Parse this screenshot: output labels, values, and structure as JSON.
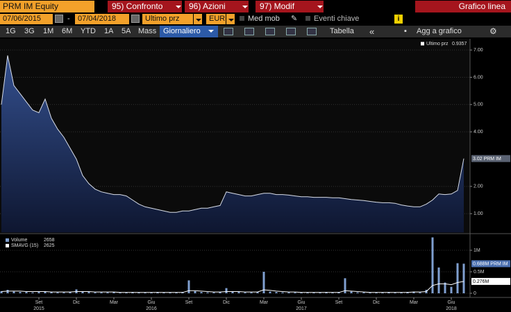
{
  "toolbar": {
    "security": "PRM IM Equity",
    "menus": [
      "95) Confronto",
      "96) Azioni",
      "97) Modif"
    ],
    "chart_type": "Grafico linea",
    "start_date": "07/06/2015",
    "end_date": "07/04/2018",
    "field": "Ultimo prz",
    "currency": "EUR",
    "options": [
      "Med mob",
      "Eventi chiave"
    ],
    "info": "i",
    "ranges": [
      "1G",
      "3G",
      "1M",
      "6M",
      "YTD",
      "1A",
      "5A",
      "Mass"
    ],
    "frequency": "Giornaliero",
    "table": "Tabella",
    "collapse": "«",
    "add": "Agg a grafico"
  },
  "chart_data": [
    {
      "type": "line",
      "grid": true,
      "legend": "upper right",
      "ylim": [
        0.31,
        7.41
      ],
      "yticks": [
        {
          "value": 1,
          "label": "1.00"
        },
        {
          "value": 2,
          "label": "2.00"
        },
        {
          "value": 4,
          "label": "4.00"
        },
        {
          "value": 5,
          "label": "5.00"
        },
        {
          "value": 6,
          "label": "6.00"
        },
        {
          "value": 7,
          "label": "7.00"
        }
      ],
      "series": [
        {
          "name": "Ultimo prz",
          "legend_value": 0.9357,
          "color": "#d8dde8",
          "fill": true,
          "label_fill": "#5a6272",
          "label_text": "#ffffff",
          "values": [
            5.0,
            6.8,
            5.7,
            5.4,
            5.1,
            4.8,
            4.7,
            5.2,
            4.5,
            4.1,
            3.8,
            3.4,
            3.0,
            2.4,
            2.1,
            1.9,
            1.8,
            1.75,
            1.7,
            1.7,
            1.65,
            1.5,
            1.35,
            1.25,
            1.2,
            1.15,
            1.1,
            1.05,
            1.05,
            1.1,
            1.1,
            1.15,
            1.2,
            1.2,
            1.25,
            1.3,
            1.8,
            1.75,
            1.7,
            1.65,
            1.65,
            1.7,
            1.75,
            1.75,
            1.7,
            1.7,
            1.68,
            1.65,
            1.62,
            1.62,
            1.6,
            1.6,
            1.6,
            1.58,
            1.58,
            1.55,
            1.52,
            1.5,
            1.48,
            1.45,
            1.42,
            1.4,
            1.4,
            1.38,
            1.32,
            1.28,
            1.25,
            1.25,
            1.35,
            1.5,
            1.72,
            1.7,
            1.72,
            1.85,
            3.02
          ],
          "value_labels": [
            null,
            null,
            null,
            null,
            null,
            null,
            null,
            null,
            null,
            null,
            null,
            null,
            null,
            null,
            null,
            null,
            null,
            null,
            null,
            null,
            null,
            null,
            null,
            null,
            null,
            null,
            null,
            null,
            null,
            null,
            null,
            null,
            null,
            null,
            null,
            null,
            null,
            null,
            null,
            null,
            null,
            null,
            null,
            null,
            null,
            null,
            null,
            null,
            null,
            null,
            null,
            null,
            null,
            null,
            null,
            null,
            null,
            null,
            null,
            null,
            null,
            null,
            null,
            null,
            null,
            null,
            null,
            null,
            null,
            null,
            null,
            null,
            null,
            null,
            "3.02 PRM IM"
          ]
        }
      ]
    },
    {
      "type": "bar",
      "grid": true,
      "legend": "upper left",
      "ylim": [
        0,
        1.35
      ],
      "yticks": [
        0,
        {
          "value": 0.5,
          "label": "0.5M"
        },
        {
          "value": 1,
          "label": "1M"
        }
      ],
      "categories": [
        null,
        null,
        null,
        null,
        null,
        null,
        "Set",
        null,
        null,
        null,
        null,
        null,
        "Dic",
        null,
        null,
        null,
        null,
        null,
        "Mar",
        null,
        null,
        null,
        null,
        null,
        "Giu",
        null,
        null,
        null,
        null,
        null,
        "Set",
        null,
        null,
        null,
        null,
        null,
        "Dic",
        null,
        null,
        null,
        null,
        null,
        "Mar",
        null,
        null,
        null,
        null,
        null,
        "Giu",
        null,
        null,
        null,
        null,
        null,
        "Set",
        null,
        null,
        null,
        null,
        null,
        "Dic",
        null,
        null,
        null,
        null,
        null,
        "Mar",
        null,
        null,
        null,
        null,
        null,
        "Giu",
        null,
        null
      ],
      "x_years": [
        null,
        null,
        null,
        null,
        null,
        null,
        "2015",
        null,
        null,
        null,
        null,
        null,
        null,
        null,
        null,
        null,
        null,
        null,
        null,
        null,
        null,
        null,
        null,
        null,
        "2016",
        null,
        null,
        null,
        null,
        null,
        null,
        null,
        null,
        null,
        null,
        null,
        null,
        null,
        null,
        null,
        null,
        null,
        null,
        null,
        null,
        null,
        null,
        null,
        "2017",
        null,
        null,
        null,
        null,
        null,
        null,
        null,
        null,
        null,
        null,
        null,
        null,
        null,
        null,
        null,
        null,
        null,
        null,
        null,
        null,
        null,
        null,
        null,
        "2018",
        null,
        null
      ],
      "series": [
        {
          "name": "Volume",
          "legend_value": 2658,
          "color": "#7f9fd0",
          "label_fill": "#4a6fb0",
          "label_text": "#ffffff",
          "values": [
            0.05,
            0.08,
            0.04,
            0.03,
            0.03,
            0.02,
            0.03,
            0.04,
            0.03,
            0.02,
            0.02,
            0.03,
            0.09,
            0.04,
            0.03,
            0.02,
            0.02,
            0.02,
            0.03,
            0.02,
            0.02,
            0.03,
            0.02,
            0.02,
            0.02,
            0.03,
            0.02,
            0.02,
            0.02,
            0.03,
            0.3,
            0.05,
            0.03,
            0.02,
            0.02,
            0.03,
            0.12,
            0.04,
            0.03,
            0.02,
            0.02,
            0.03,
            0.5,
            0.04,
            0.03,
            0.02,
            0.02,
            0.02,
            0.02,
            0.02,
            0.02,
            0.02,
            0.03,
            0.02,
            0.03,
            0.35,
            0.04,
            0.02,
            0.02,
            0.02,
            0.02,
            0.02,
            0.03,
            0.02,
            0.02,
            0.03,
            0.04,
            0.02,
            0.08,
            1.3,
            0.6,
            0.25,
            0.15,
            0.7,
            0.688
          ],
          "value_labels": [
            null,
            null,
            null,
            null,
            null,
            null,
            null,
            null,
            null,
            null,
            null,
            null,
            null,
            null,
            null,
            null,
            null,
            null,
            null,
            null,
            null,
            null,
            null,
            null,
            null,
            null,
            null,
            null,
            null,
            null,
            null,
            null,
            null,
            null,
            null,
            null,
            null,
            null,
            null,
            null,
            null,
            null,
            null,
            null,
            null,
            null,
            null,
            null,
            null,
            null,
            null,
            null,
            null,
            null,
            null,
            null,
            null,
            null,
            null,
            null,
            null,
            null,
            null,
            null,
            null,
            null,
            null,
            null,
            null,
            null,
            null,
            null,
            null,
            null,
            "0.688M PRM IM"
          ]
        },
        {
          "name": "SMAVG (15)",
          "type": "line",
          "legend_value": 2625,
          "color": "#ffffff",
          "label_fill": "#ffffff",
          "label_text": "#000000",
          "values": [
            0.04,
            0.05,
            0.05,
            0.05,
            0.04,
            0.04,
            0.04,
            0.04,
            0.03,
            0.03,
            0.03,
            0.03,
            0.04,
            0.04,
            0.04,
            0.03,
            0.03,
            0.03,
            0.03,
            0.02,
            0.02,
            0.02,
            0.02,
            0.02,
            0.02,
            0.02,
            0.02,
            0.02,
            0.02,
            0.02,
            0.06,
            0.06,
            0.05,
            0.04,
            0.03,
            0.03,
            0.04,
            0.04,
            0.04,
            0.03,
            0.03,
            0.03,
            0.08,
            0.07,
            0.05,
            0.04,
            0.03,
            0.03,
            0.02,
            0.02,
            0.02,
            0.02,
            0.02,
            0.02,
            0.02,
            0.06,
            0.05,
            0.04,
            0.03,
            0.02,
            0.02,
            0.02,
            0.02,
            0.02,
            0.02,
            0.02,
            0.03,
            0.03,
            0.04,
            0.18,
            0.22,
            0.22,
            0.2,
            0.25,
            0.276
          ],
          "value_labels": [
            null,
            null,
            null,
            null,
            null,
            null,
            null,
            null,
            null,
            null,
            null,
            null,
            null,
            null,
            null,
            null,
            null,
            null,
            null,
            null,
            null,
            null,
            null,
            null,
            null,
            null,
            null,
            null,
            null,
            null,
            null,
            null,
            null,
            null,
            null,
            null,
            null,
            null,
            null,
            null,
            null,
            null,
            null,
            null,
            null,
            null,
            null,
            null,
            null,
            null,
            null,
            null,
            null,
            null,
            null,
            null,
            null,
            null,
            null,
            null,
            null,
            null,
            null,
            null,
            null,
            null,
            null,
            null,
            null,
            null,
            null,
            null,
            null,
            null,
            "0.276M"
          ]
        }
      ]
    }
  ]
}
